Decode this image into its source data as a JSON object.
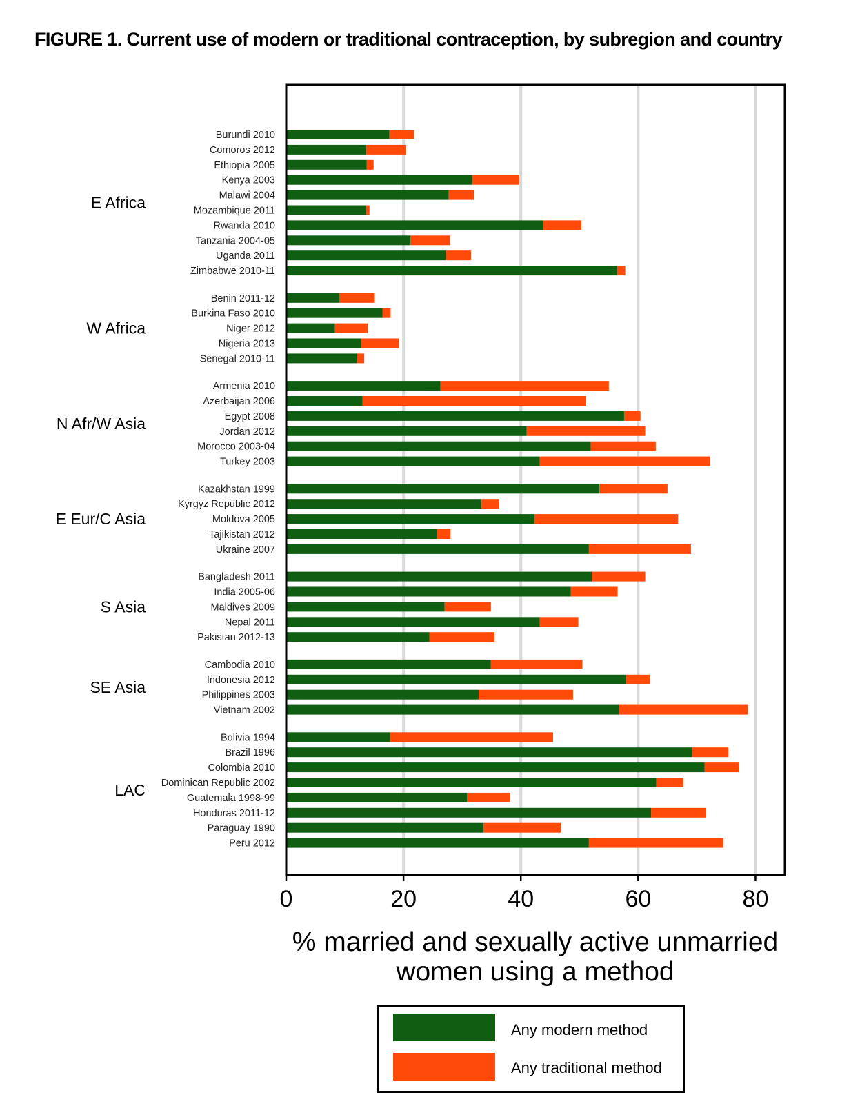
{
  "title": "FIGURE 1. Current use of modern or traditional contraception, by subregion and country",
  "chart_data": {
    "type": "bar",
    "orientation": "horizontal",
    "stacked": true,
    "xlabel": "% married and sexually active unmarried women using a method",
    "xlim": [
      0,
      85
    ],
    "xticks": [
      0,
      20,
      40,
      60,
      80
    ],
    "grid": "vertical",
    "legend": {
      "placement": "bottom",
      "entries": [
        "Any modern method",
        "Any traditional method"
      ]
    },
    "colors": {
      "modern": "#0f5e12",
      "traditional": "#ff4a0a",
      "grid": "#d9d9d9"
    },
    "series": [
      {
        "name": "Any modern method",
        "key": "modern"
      },
      {
        "name": "Any traditional method",
        "key": "traditional"
      }
    ],
    "groups": [
      {
        "name": "E Africa",
        "rows": [
          {
            "label": "Burundi 2010",
            "modern": 17.6,
            "traditional": 4.2
          },
          {
            "label": "Comoros 2012",
            "modern": 13.6,
            "traditional": 6.8
          },
          {
            "label": "Ethiopia 2005",
            "modern": 13.7,
            "traditional": 1.2
          },
          {
            "label": "Kenya 2003",
            "modern": 31.7,
            "traditional": 8.0
          },
          {
            "label": "Malawi 2004",
            "modern": 27.7,
            "traditional": 4.3
          },
          {
            "label": "Mozambique 2011",
            "modern": 13.6,
            "traditional": 0.6
          },
          {
            "label": "Rwanda 2010",
            "modern": 43.8,
            "traditional": 6.5
          },
          {
            "label": "Tanzania 2004-05",
            "modern": 21.2,
            "traditional": 6.7
          },
          {
            "label": "Uganda 2011",
            "modern": 27.2,
            "traditional": 4.3
          },
          {
            "label": "Zimbabwe 2010-11",
            "modern": 56.4,
            "traditional": 1.4
          }
        ]
      },
      {
        "name": "W Africa",
        "rows": [
          {
            "label": "Benin 2011-12",
            "modern": 9.1,
            "traditional": 6.0
          },
          {
            "label": "Burkina Faso 2010",
            "modern": 16.4,
            "traditional": 1.4
          },
          {
            "label": "Niger 2012",
            "modern": 8.3,
            "traditional": 5.6
          },
          {
            "label": "Nigeria 2013",
            "modern": 12.8,
            "traditional": 6.4
          },
          {
            "label": "Senegal 2010-11",
            "modern": 12.0,
            "traditional": 1.3
          }
        ]
      },
      {
        "name": "N Afr/W Asia",
        "rows": [
          {
            "label": "Armenia 2010",
            "modern": 26.3,
            "traditional": 28.7
          },
          {
            "label": "Azerbaijan 2006",
            "modern": 13.0,
            "traditional": 38.1
          },
          {
            "label": "Egypt 2008",
            "modern": 57.6,
            "traditional": 2.8
          },
          {
            "label": "Jordan 2012",
            "modern": 41.0,
            "traditional": 20.2
          },
          {
            "label": "Morocco 2003-04",
            "modern": 51.9,
            "traditional": 11.1
          },
          {
            "label": "Turkey 2003",
            "modern": 43.2,
            "traditional": 29.1
          }
        ]
      },
      {
        "name": "E Eur/C Asia",
        "rows": [
          {
            "label": "Kazakhstan 1999",
            "modern": 53.4,
            "traditional": 11.6
          },
          {
            "label": "Kyrgyz Republic 2012",
            "modern": 33.3,
            "traditional": 3.0
          },
          {
            "label": "Moldova 2005",
            "modern": 42.3,
            "traditional": 24.5
          },
          {
            "label": "Tajikistan 2012",
            "modern": 25.7,
            "traditional": 2.3
          },
          {
            "label": "Ukraine 2007",
            "modern": 51.6,
            "traditional": 17.4
          }
        ]
      },
      {
        "name": "S Asia",
        "rows": [
          {
            "label": "Bangladesh 2011",
            "modern": 52.1,
            "traditional": 9.1
          },
          {
            "label": "India 2005-06",
            "modern": 48.5,
            "traditional": 8.0
          },
          {
            "label": "Maldives 2009",
            "modern": 27.0,
            "traditional": 7.9
          },
          {
            "label": "Nepal 2011",
            "modern": 43.2,
            "traditional": 6.6
          },
          {
            "label": "Pakistan 2012-13",
            "modern": 24.4,
            "traditional": 11.1
          }
        ]
      },
      {
        "name": "SE Asia",
        "rows": [
          {
            "label": "Cambodia 2010",
            "modern": 34.9,
            "traditional": 15.6
          },
          {
            "label": "Indonesia 2012",
            "modern": 57.9,
            "traditional": 4.1
          },
          {
            "label": "Philippines 2003",
            "modern": 32.8,
            "traditional": 16.1
          },
          {
            "label": "Vietnam 2002",
            "modern": 56.7,
            "traditional": 22.0
          }
        ]
      },
      {
        "name": "LAC",
        "rows": [
          {
            "label": "Bolivia 1994",
            "modern": 17.7,
            "traditional": 27.8
          },
          {
            "label": "Brazil 1996",
            "modern": 69.2,
            "traditional": 6.2
          },
          {
            "label": "Colombia 2010",
            "modern": 71.3,
            "traditional": 5.9
          },
          {
            "label": "Dominican Republic 2002",
            "modern": 63.1,
            "traditional": 4.6
          },
          {
            "label": "Guatemala 1998-99",
            "modern": 30.8,
            "traditional": 7.4
          },
          {
            "label": "Honduras 2011-12",
            "modern": 62.2,
            "traditional": 9.4
          },
          {
            "label": "Paraguay 1990",
            "modern": 33.6,
            "traditional": 13.2
          },
          {
            "label": "Peru 2012",
            "modern": 51.6,
            "traditional": 22.9
          }
        ]
      }
    ]
  }
}
